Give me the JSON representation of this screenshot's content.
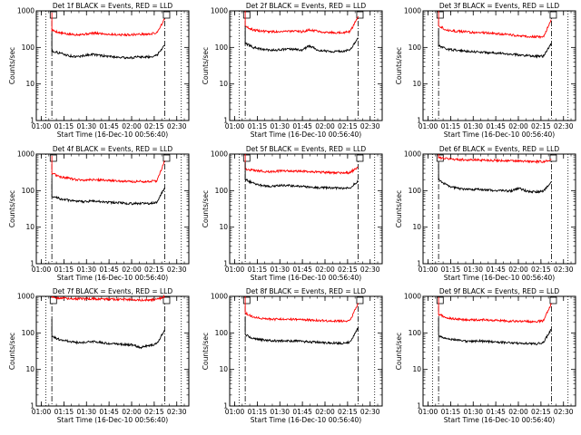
{
  "chart_data": [
    {
      "type": "line",
      "title": "Det 1f BLACK = Events, RED = LLD",
      "ylabel": "Counts/sec",
      "xlabel": "Start Time (16-Dec-10 00:56:40)",
      "xticks": [
        "01:00",
        "01:15",
        "01:30",
        "01:45",
        "02:00",
        "02:15",
        "02:30"
      ],
      "yticks": [
        "1",
        "10",
        "100",
        "1000"
      ],
      "ylim": [
        1,
        1000
      ],
      "yscale": "log",
      "xlim": [
        "00:56:40",
        "02:38:00"
      ],
      "vlines_dotted": [
        "01:03",
        "02:33"
      ],
      "vlines_dashdot": [
        "01:07",
        "02:22"
      ],
      "marker": "01:08",
      "series": [
        {
          "color": "#ff0000",
          "values": [
            300,
            250,
            230,
            225,
            230,
            245,
            240,
            230,
            225,
            220,
            225,
            230,
            230,
            250,
            600
          ]
        },
        {
          "color": "#000000",
          "values": [
            80,
            70,
            60,
            55,
            60,
            65,
            60,
            57,
            55,
            52,
            53,
            55,
            55,
            60,
            120
          ]
        }
      ]
    },
    {
      "type": "line",
      "title": "Det 2f BLACK = Events, RED = LLD",
      "ylabel": "Counts/sec",
      "xlabel": "Start Time (16-Dec-10 00:56:40)",
      "xticks": [
        "01:00",
        "01:15",
        "01:30",
        "01:45",
        "02:00",
        "02:15",
        "02:30"
      ],
      "yticks": [
        "1",
        "10",
        "100",
        "1000"
      ],
      "ylim": [
        1,
        1000
      ],
      "yscale": "log",
      "xlim": [
        "00:56:40",
        "02:38:00"
      ],
      "vlines_dotted": [
        "01:03",
        "02:33"
      ],
      "vlines_dashdot": [
        "01:07",
        "02:22"
      ],
      "marker": "01:08",
      "series": [
        {
          "color": "#ff0000",
          "values": [
            380,
            300,
            280,
            270,
            270,
            280,
            275,
            270,
            300,
            280,
            260,
            255,
            255,
            270,
            700
          ]
        },
        {
          "color": "#000000",
          "values": [
            130,
            100,
            90,
            85,
            85,
            90,
            88,
            85,
            110,
            85,
            80,
            78,
            78,
            85,
            180
          ]
        }
      ]
    },
    {
      "type": "line",
      "title": "Det 3f BLACK = Events, RED = LLD",
      "ylabel": "Counts/sec",
      "xlabel": "Start Time (16-Dec-10 00:56:40)",
      "xticks": [
        "01:00",
        "01:15",
        "01:30",
        "01:45",
        "02:00",
        "02:15",
        "02:30"
      ],
      "yticks": [
        "1",
        "10",
        "100",
        "1000"
      ],
      "ylim": [
        1,
        1000
      ],
      "yscale": "log",
      "xlim": [
        "00:56:40",
        "02:38:00"
      ],
      "vlines_dotted": [
        "01:03",
        "02:33"
      ],
      "vlines_dashdot": [
        "01:07",
        "02:22"
      ],
      "marker": "01:08",
      "series": [
        {
          "color": "#ff0000",
          "values": [
            400,
            300,
            280,
            270,
            260,
            255,
            250,
            240,
            230,
            220,
            210,
            200,
            195,
            190,
            600
          ]
        },
        {
          "color": "#000000",
          "values": [
            110,
            90,
            85,
            80,
            78,
            75,
            72,
            70,
            68,
            65,
            62,
            60,
            58,
            57,
            130
          ]
        }
      ]
    },
    {
      "type": "line",
      "title": "Det 4f BLACK = Events, RED = LLD",
      "ylabel": "Counts/sec",
      "xlabel": "Start Time (16-Dec-10 00:56:40)",
      "xticks": [
        "01:00",
        "01:15",
        "01:30",
        "01:45",
        "02:00",
        "02:15",
        "02:30"
      ],
      "yticks": [
        "1",
        "10",
        "100",
        "1000"
      ],
      "ylim": [
        1,
        1000
      ],
      "yscale": "log",
      "xlim": [
        "00:56:40",
        "02:38:00"
      ],
      "vlines_dotted": [
        "01:03",
        "02:33"
      ],
      "vlines_dashdot": [
        "01:07",
        "02:22"
      ],
      "marker": "01:08",
      "series": [
        {
          "color": "#ff0000",
          "values": [
            300,
            240,
            220,
            200,
            195,
            200,
            195,
            190,
            185,
            180,
            175,
            180,
            175,
            185,
            650
          ]
        },
        {
          "color": "#000000",
          "values": [
            70,
            60,
            55,
            50,
            50,
            52,
            50,
            48,
            47,
            45,
            44,
            45,
            44,
            48,
            120
          ]
        }
      ]
    },
    {
      "type": "line",
      "title": "Det 5f BLACK = Events, RED = LLD",
      "ylabel": "Counts/sec",
      "xlabel": "Start Time (16-Dec-10 00:56:40)",
      "xticks": [
        "01:00",
        "01:15",
        "01:30",
        "01:45",
        "02:00",
        "02:15",
        "02:30"
      ],
      "yticks": [
        "1",
        "10",
        "100",
        "1000"
      ],
      "ylim": [
        1,
        1000
      ],
      "yscale": "log",
      "xlim": [
        "00:56:40",
        "02:38:00"
      ],
      "vlines_dotted": [
        "01:03",
        "02:33"
      ],
      "vlines_dashdot": [
        "01:07",
        "02:22"
      ],
      "marker": "01:08",
      "series": [
        {
          "color": "#ff0000",
          "values": [
            380,
            360,
            340,
            330,
            340,
            350,
            345,
            340,
            330,
            320,
            315,
            310,
            305,
            310,
            450
          ]
        },
        {
          "color": "#000000",
          "values": [
            200,
            160,
            140,
            130,
            135,
            140,
            135,
            130,
            125,
            120,
            120,
            118,
            115,
            120,
            180
          ]
        }
      ]
    },
    {
      "type": "line",
      "title": "Det 6f BLACK = Events, RED = LLD",
      "ylabel": "Counts/sec",
      "xlabel": "Start Time (16-Dec-10 00:56:40)",
      "xticks": [
        "01:00",
        "01:15",
        "01:30",
        "01:45",
        "02:00",
        "02:15",
        "02:30"
      ],
      "yticks": [
        "1",
        "10",
        "100",
        "1000"
      ],
      "ylim": [
        1,
        1000
      ],
      "yscale": "log",
      "xlim": [
        "00:56:40",
        "02:38:00"
      ],
      "vlines_dotted": [
        "01:03",
        "02:33"
      ],
      "vlines_dashdot": [
        "01:07",
        "02:22"
      ],
      "marker": "01:08",
      "series": [
        {
          "color": "#ff0000",
          "values": [
            800,
            750,
            720,
            700,
            690,
            690,
            680,
            670,
            660,
            650,
            640,
            630,
            620,
            620,
            700
          ]
        },
        {
          "color": "#000000",
          "values": [
            200,
            140,
            120,
            110,
            105,
            108,
            105,
            100,
            100,
            98,
            115,
            95,
            92,
            95,
            180
          ]
        }
      ]
    },
    {
      "type": "line",
      "title": "Det 7f BLACK = Events, RED = LLD",
      "ylabel": "Counts/sec",
      "xlabel": "Start Time (16-Dec-10 00:56:40)",
      "xticks": [
        "01:00",
        "01:15",
        "01:30",
        "01:45",
        "02:00",
        "02:15",
        "02:30"
      ],
      "yticks": [
        "1",
        "10",
        "100",
        "1000"
      ],
      "ylim": [
        1,
        1000
      ],
      "yscale": "log",
      "xlim": [
        "00:56:40",
        "02:38:00"
      ],
      "vlines_dotted": [
        "01:03",
        "02:33"
      ],
      "vlines_dashdot": [
        "01:07",
        "02:22"
      ],
      "marker": "01:08",
      "series": [
        {
          "color": "#ff0000",
          "values": [
            950,
            900,
            870,
            860,
            850,
            860,
            850,
            840,
            830,
            820,
            810,
            800,
            800,
            820,
            1000
          ]
        },
        {
          "color": "#000000",
          "values": [
            80,
            65,
            60,
            55,
            55,
            58,
            55,
            52,
            50,
            48,
            47,
            40,
            45,
            50,
            120
          ]
        }
      ]
    },
    {
      "type": "line",
      "title": "Det 8f BLACK = Events, RED = LLD",
      "ylabel": "Counts/sec",
      "xlabel": "Start Time (16-Dec-10 00:56:40)",
      "xticks": [
        "01:00",
        "01:15",
        "01:30",
        "01:45",
        "02:00",
        "02:15",
        "02:30"
      ],
      "yticks": [
        "1",
        "10",
        "100",
        "1000"
      ],
      "ylim": [
        1,
        1000
      ],
      "yscale": "log",
      "xlim": [
        "00:56:40",
        "02:38:00"
      ],
      "vlines_dotted": [
        "01:03",
        "02:33"
      ],
      "vlines_dashdot": [
        "01:07",
        "02:22"
      ],
      "marker": "01:08",
      "series": [
        {
          "color": "#ff0000",
          "values": [
            350,
            270,
            250,
            240,
            235,
            240,
            235,
            230,
            225,
            220,
            215,
            210,
            210,
            220,
            650
          ]
        },
        {
          "color": "#000000",
          "values": [
            90,
            70,
            65,
            62,
            60,
            62,
            60,
            58,
            57,
            55,
            54,
            53,
            52,
            56,
            140
          ]
        }
      ]
    },
    {
      "type": "line",
      "title": "Det 9f BLACK = Events, RED = LLD",
      "ylabel": "Counts/sec",
      "xlabel": "Start Time (16-Dec-10 00:56:40)",
      "xticks": [
        "01:00",
        "01:15",
        "01:30",
        "01:45",
        "02:00",
        "02:15",
        "02:30"
      ],
      "yticks": [
        "1",
        "10",
        "100",
        "1000"
      ],
      "ylim": [
        1,
        1000
      ],
      "yscale": "log",
      "xlim": [
        "00:56:40",
        "02:38:00"
      ],
      "vlines_dotted": [
        "01:03",
        "02:33"
      ],
      "vlines_dashdot": [
        "01:07",
        "02:22"
      ],
      "marker": "01:08",
      "series": [
        {
          "color": "#ff0000",
          "values": [
            320,
            260,
            240,
            230,
            225,
            230,
            225,
            220,
            215,
            210,
            210,
            205,
            205,
            215,
            650
          ]
        },
        {
          "color": "#000000",
          "values": [
            85,
            70,
            65,
            60,
            58,
            60,
            58,
            56,
            55,
            53,
            52,
            51,
            50,
            54,
            130
          ]
        }
      ]
    }
  ]
}
